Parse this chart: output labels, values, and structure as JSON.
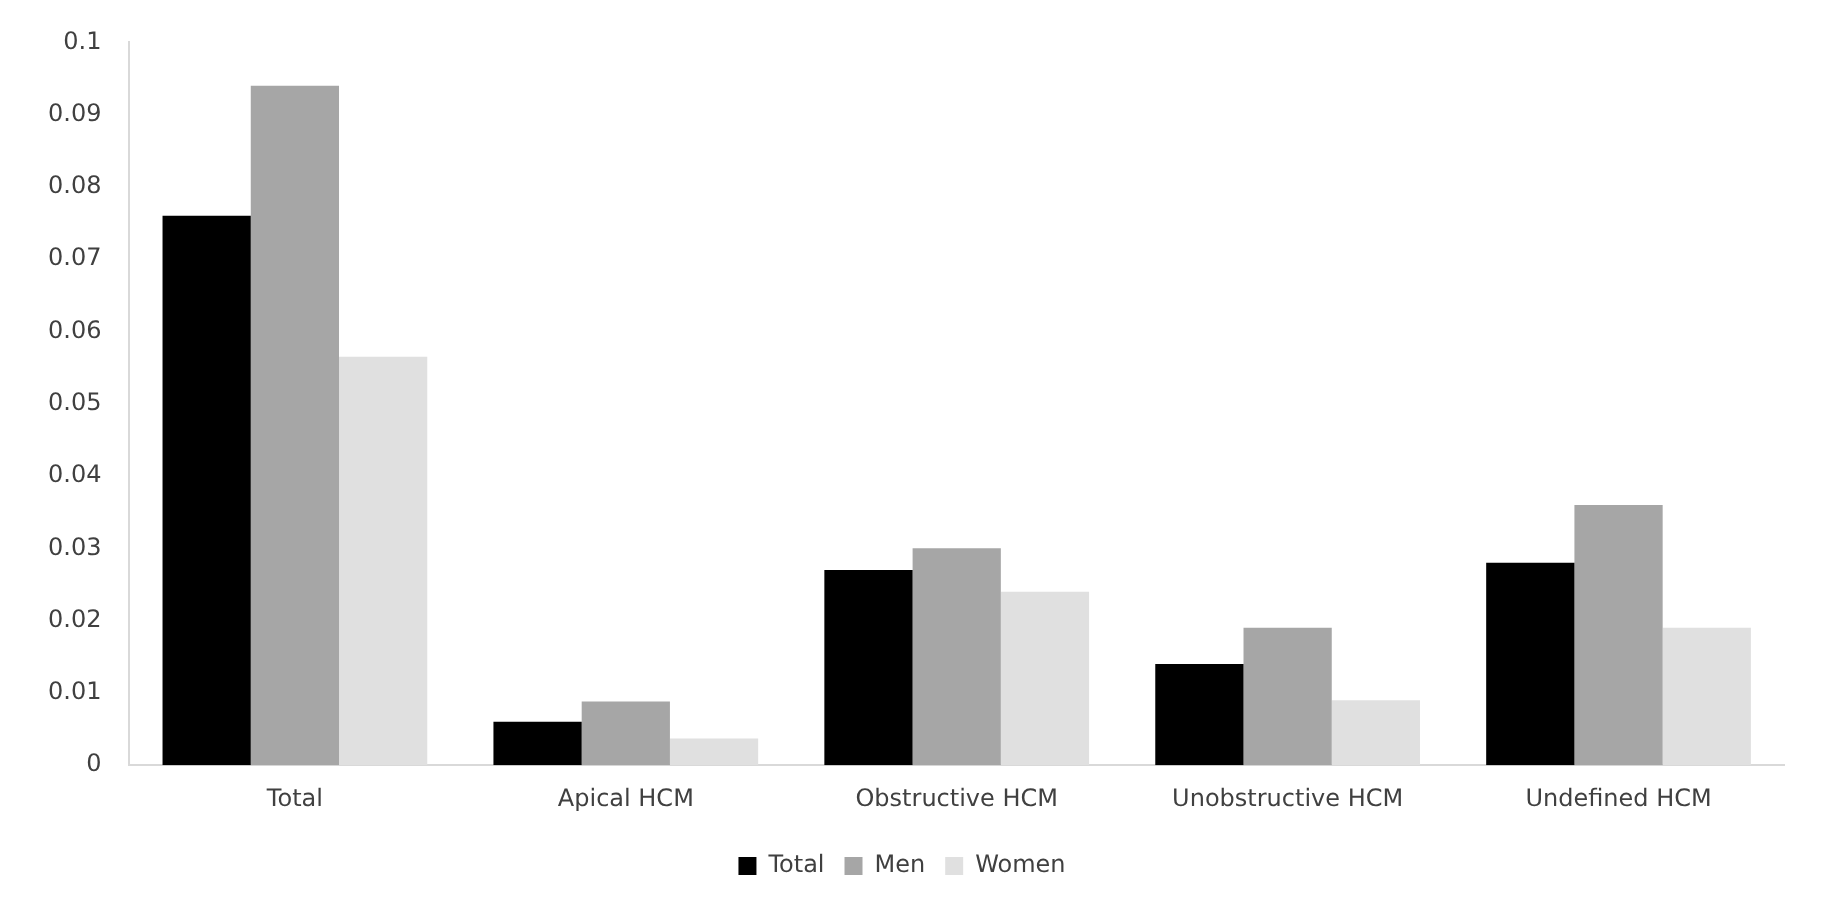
{
  "chart_data": {
    "type": "bar",
    "categories": [
      "Total",
      "Apical HCM",
      "Obstructive HCM",
      "Unobstructive HCM",
      "Undefined HCM"
    ],
    "series": [
      {
        "name": "Total",
        "color": "#000000",
        "values": [
          0.076,
          0.006,
          0.027,
          0.014,
          0.028
        ]
      },
      {
        "name": "Men",
        "color": "#a6a6a6",
        "values": [
          0.094,
          0.0088,
          0.03,
          0.019,
          0.036
        ]
      },
      {
        "name": "Women",
        "color": "#e0e0e0",
        "values": [
          0.0565,
          0.0037,
          0.024,
          0.009,
          0.019
        ]
      }
    ],
    "ylim": [
      0,
      0.1
    ],
    "yticks": [
      0,
      0.01,
      0.02,
      0.03,
      0.04,
      0.05,
      0.06,
      0.07,
      0.08,
      0.09,
      0.1
    ],
    "grid": false,
    "legend": "bottom"
  }
}
